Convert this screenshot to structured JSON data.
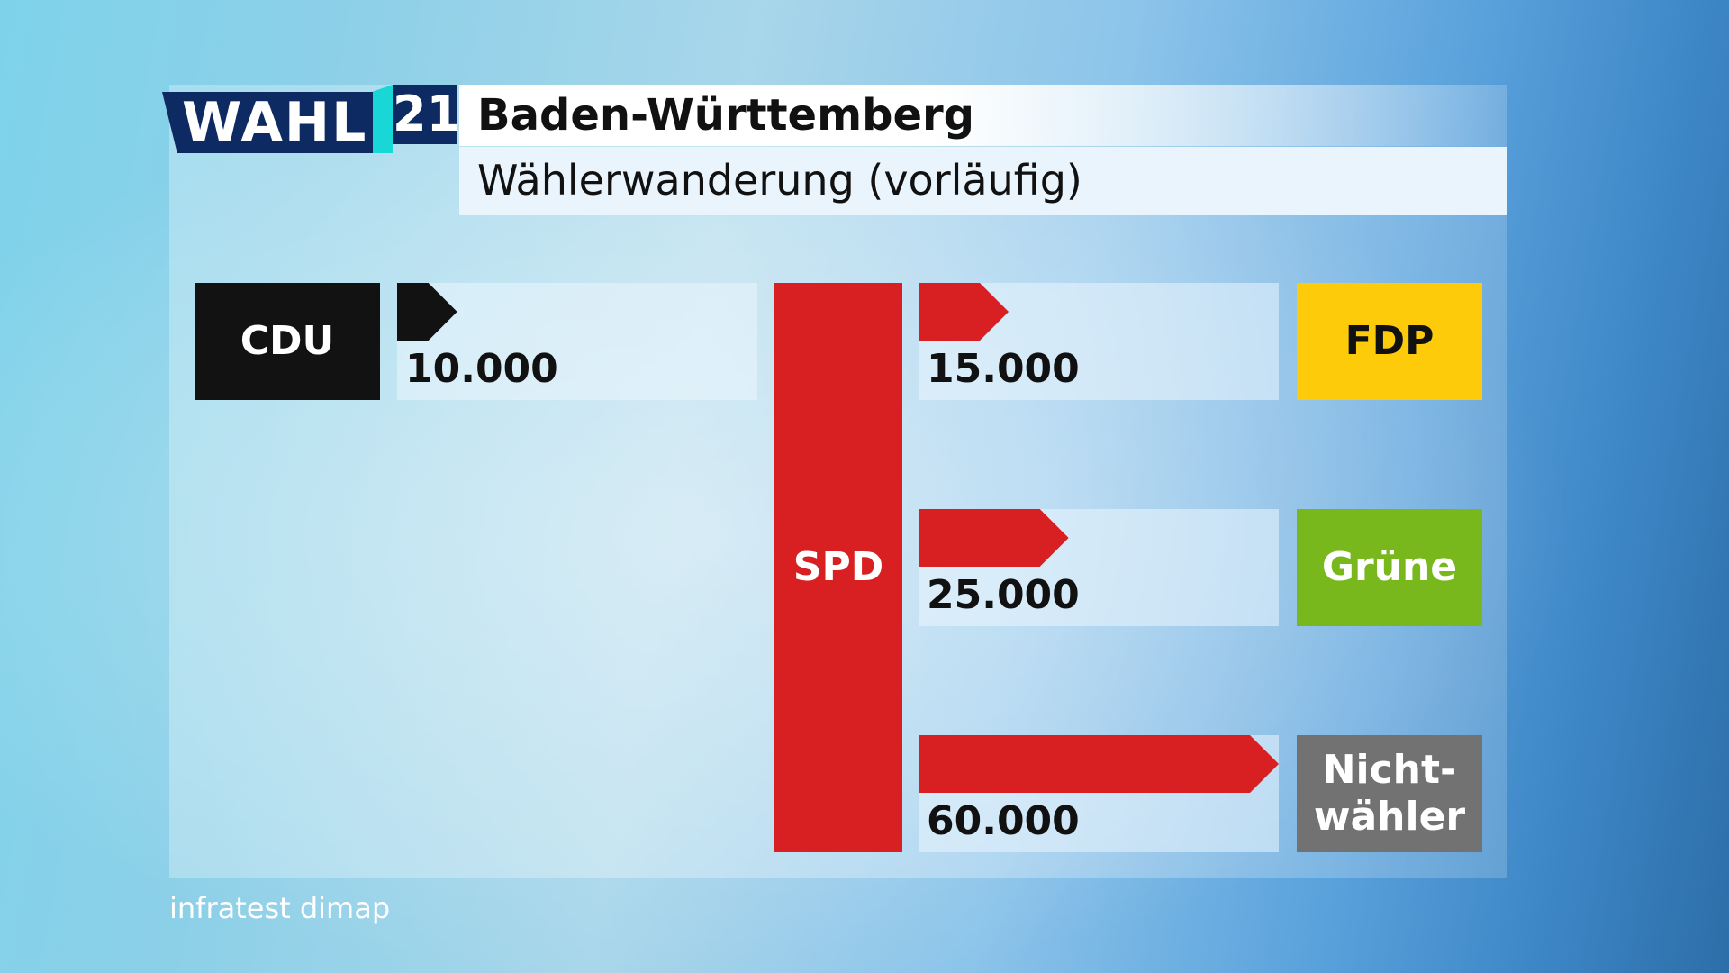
{
  "header": {
    "logo_text": "WAHL",
    "logo_number": "21",
    "title": "Baden-Württemberg",
    "subtitle": "Wählerwanderung (vorläufig)"
  },
  "source": "infratest dimap",
  "colors": {
    "CDU": "#121212",
    "SPD": "#d81f21",
    "FDP": "#fdcb0a",
    "Grüne": "#78b81d",
    "Nichtwähler": "#727272"
  },
  "chart_data": {
    "type": "bar",
    "title": "Wählerwanderung (vorläufig)",
    "center_party": "SPD",
    "flows": [
      {
        "from": "CDU",
        "to": "SPD",
        "value": 10000,
        "label": "10.000",
        "party_label": "CDU"
      },
      {
        "from": "SPD",
        "to": "FDP",
        "value": 15000,
        "label": "15.000",
        "party_label": "FDP"
      },
      {
        "from": "SPD",
        "to": "Grüne",
        "value": 25000,
        "label": "25.000",
        "party_label": "Grüne"
      },
      {
        "from": "SPD",
        "to": "Nichtwähler",
        "value": 60000,
        "label": "60.000",
        "party_label": "Nicht-\nwähler"
      }
    ],
    "max_value": 60000
  }
}
